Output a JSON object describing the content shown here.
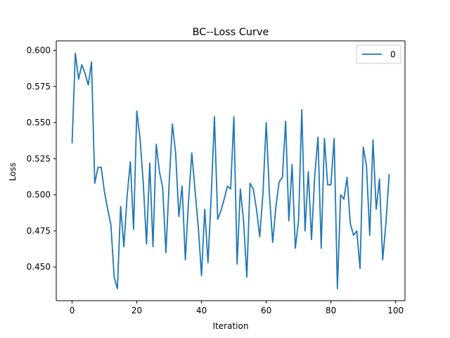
{
  "chart_data": {
    "type": "line",
    "title": "BC--Loss Curve",
    "xlabel": "Iteration",
    "ylabel": "Loss",
    "xlim": [
      -4.9,
      102.9
    ],
    "ylim": [
      0.4267,
      0.6066
    ],
    "x_ticks": [
      0,
      20,
      40,
      60,
      80,
      100
    ],
    "x_tick_labels": [
      "0",
      "20",
      "40",
      "60",
      "80",
      "100"
    ],
    "y_ticks": [
      0.45,
      0.475,
      0.5,
      0.525,
      0.55,
      0.575,
      0.6
    ],
    "y_tick_labels": [
      "0.450",
      "0.475",
      "0.500",
      "0.525",
      "0.550",
      "0.575",
      "0.600"
    ],
    "grid": false,
    "legend_position": "top-right",
    "series": [
      {
        "name": "0",
        "color": "#1f77b4",
        "x": [
          0,
          1,
          2,
          3,
          4,
          5,
          6,
          7,
          8,
          9,
          10,
          11,
          12,
          13,
          14,
          15,
          16,
          17,
          18,
          19,
          20,
          21,
          22,
          23,
          24,
          25,
          26,
          27,
          28,
          29,
          30,
          31,
          32,
          33,
          34,
          35,
          36,
          37,
          38,
          39,
          40,
          41,
          42,
          43,
          44,
          45,
          46,
          47,
          48,
          49,
          50,
          51,
          52,
          53,
          54,
          55,
          56,
          57,
          58,
          59,
          60,
          61,
          62,
          63,
          64,
          65,
          66,
          67,
          68,
          69,
          70,
          71,
          72,
          73,
          74,
          75,
          76,
          77,
          78,
          79,
          80,
          81,
          82,
          83,
          84,
          85,
          86,
          87,
          88,
          89,
          90,
          91,
          92,
          93,
          94,
          95,
          96,
          97,
          98
        ],
        "values": [
          0.536,
          0.598,
          0.58,
          0.59,
          0.584,
          0.576,
          0.592,
          0.508,
          0.519,
          0.519,
          0.502,
          0.49,
          0.479,
          0.443,
          0.435,
          0.492,
          0.464,
          0.499,
          0.523,
          0.476,
          0.558,
          0.539,
          0.508,
          0.466,
          0.522,
          0.464,
          0.535,
          0.516,
          0.505,
          0.46,
          0.508,
          0.549,
          0.529,
          0.485,
          0.506,
          0.455,
          0.496,
          0.529,
          0.503,
          0.478,
          0.444,
          0.49,
          0.453,
          0.499,
          0.554,
          0.483,
          0.489,
          0.497,
          0.506,
          0.504,
          0.554,
          0.452,
          0.504,
          0.482,
          0.443,
          0.508,
          0.504,
          0.49,
          0.471,
          0.501,
          0.55,
          0.5,
          0.467,
          0.492,
          0.509,
          0.512,
          0.551,
          0.482,
          0.521,
          0.463,
          0.482,
          0.559,
          0.475,
          0.516,
          0.469,
          0.513,
          0.54,
          0.463,
          0.539,
          0.507,
          0.507,
          0.539,
          0.435,
          0.5,
          0.497,
          0.512,
          0.48,
          0.472,
          0.475,
          0.449,
          0.533,
          0.52,
          0.472,
          0.538,
          0.49,
          0.511,
          0.455,
          0.48,
          0.514
        ]
      }
    ]
  }
}
